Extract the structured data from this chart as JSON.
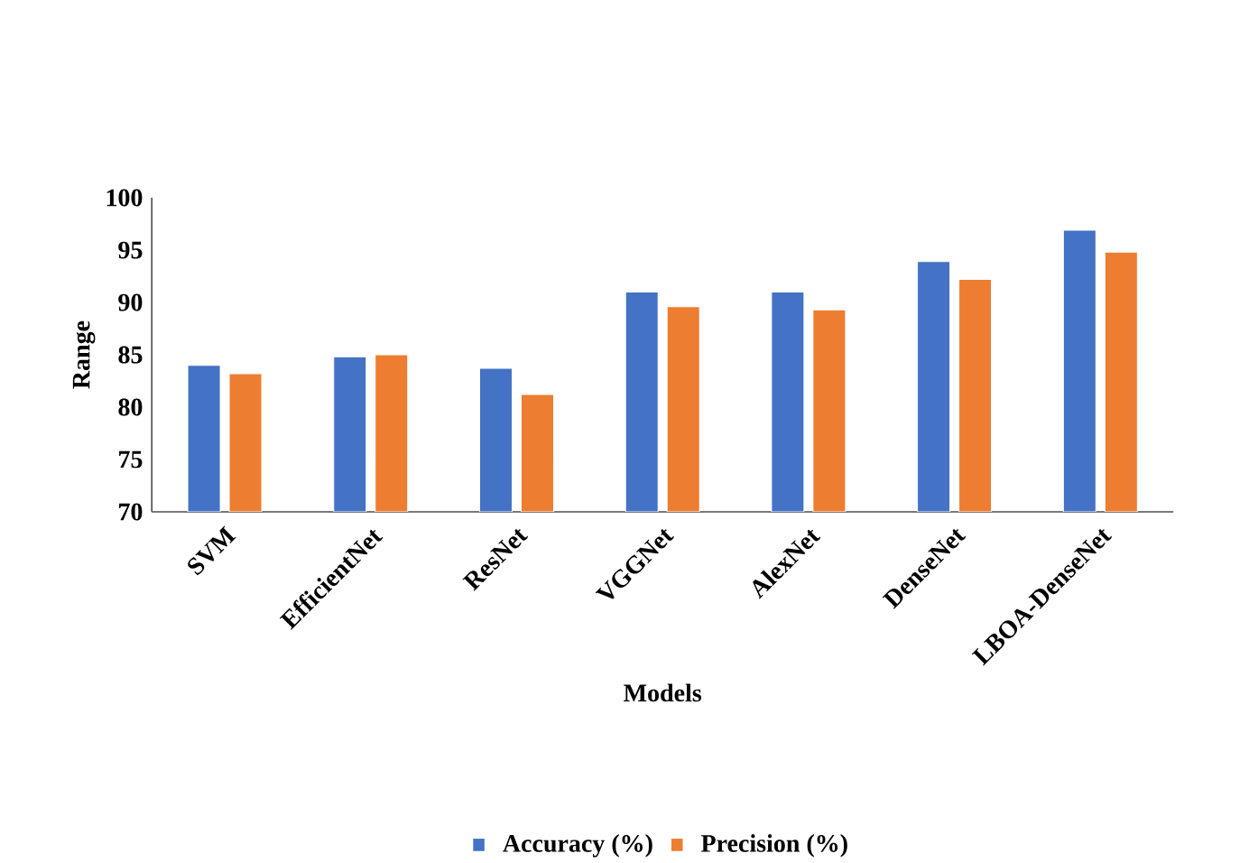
{
  "chart_data": {
    "type": "bar",
    "xlabel": "Models",
    "ylabel": "Range",
    "categories": [
      "SVM",
      "EfficientNet",
      "ResNet",
      "VGGNet",
      "AlexNet",
      "DenseNet",
      "LBOA-DenseNet"
    ],
    "series": [
      {
        "name": "Accuracy (%)",
        "color": "#4472c4",
        "values": [
          84.0,
          84.8,
          83.7,
          91.0,
          91.0,
          93.9,
          96.9
        ]
      },
      {
        "name": "Precision (%)",
        "color": "#ed7d31",
        "values": [
          83.2,
          85.0,
          81.2,
          89.6,
          89.3,
          92.2,
          94.8
        ]
      }
    ],
    "ylim": [
      70,
      100
    ],
    "yticks": [
      70,
      75,
      80,
      85,
      90,
      95,
      100
    ],
    "grid": false,
    "legend": "bottom"
  }
}
